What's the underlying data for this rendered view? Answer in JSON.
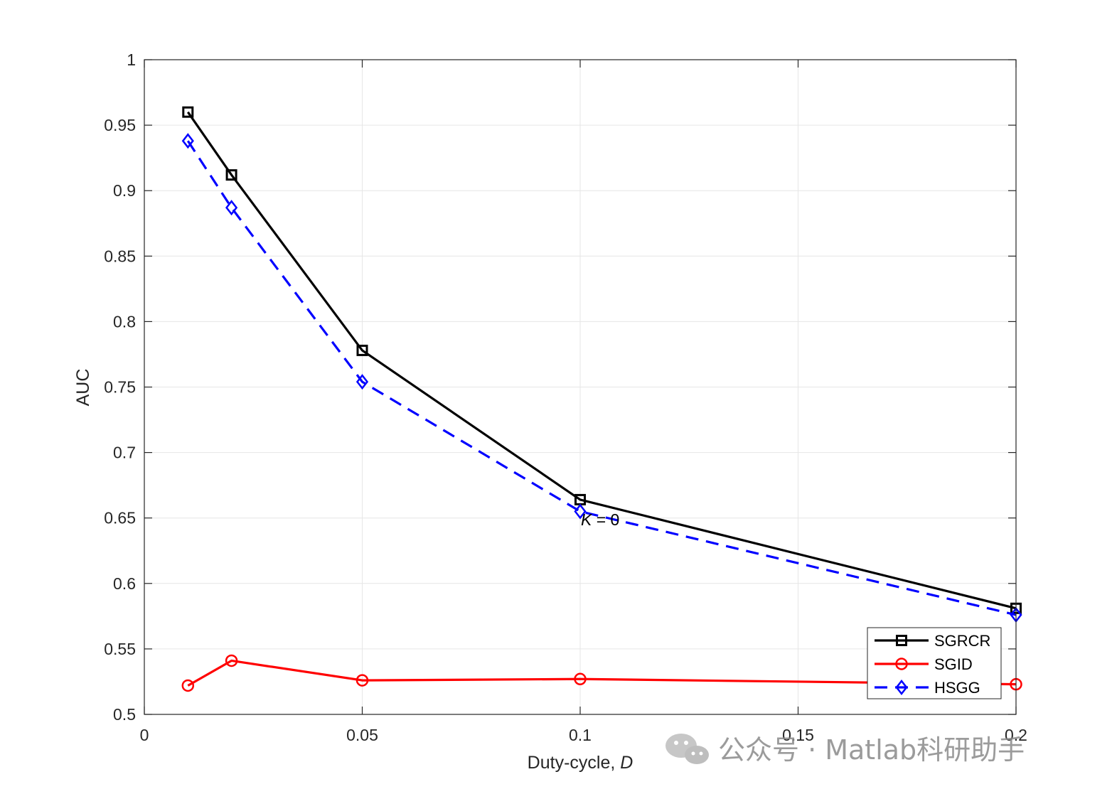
{
  "chart_data": {
    "type": "line",
    "xlabel": "Duty-cycle,",
    "xlabel_var": "D",
    "ylabel": "AUC",
    "xlim": [
      0,
      0.2
    ],
    "ylim": [
      0.5,
      1
    ],
    "xticks": [
      0,
      0.05,
      0.1,
      0.15,
      0.2
    ],
    "xtick_labels": [
      "0",
      "0.05",
      "0.1",
      "0.15",
      "0.2"
    ],
    "yticks": [
      0.5,
      0.55,
      0.6,
      0.65,
      0.7,
      0.75,
      0.8,
      0.85,
      0.9,
      0.95,
      1
    ],
    "ytick_labels": [
      "0.5",
      "0.55",
      "0.6",
      "0.65",
      "0.7",
      "0.75",
      "0.8",
      "0.85",
      "0.9",
      "0.95",
      "1"
    ],
    "grid": true,
    "legend_position": "bottom-right",
    "x": [
      0.01,
      0.02,
      0.05,
      0.1,
      0.2
    ],
    "series": [
      {
        "name": "SGRCR",
        "values": [
          0.96,
          0.912,
          0.778,
          0.664,
          0.581
        ],
        "color": "#000000",
        "marker": "square",
        "dash": "solid"
      },
      {
        "name": "SGID",
        "values": [
          0.522,
          0.541,
          0.526,
          0.527,
          0.523
        ],
        "color": "#ff0000",
        "marker": "circle",
        "dash": "solid"
      },
      {
        "name": "HSGG",
        "values": [
          0.938,
          0.887,
          0.754,
          0.655,
          0.576
        ],
        "color": "#0000ff",
        "marker": "diamond",
        "dash": "dashed"
      }
    ],
    "annotations": [
      {
        "text_var": "K",
        "text_rest": " = 0",
        "x": 0.1,
        "y": 0.65
      }
    ]
  },
  "watermark": {
    "text": "公众号 · Matlab科研助手",
    "icon": "wechat-icon"
  }
}
